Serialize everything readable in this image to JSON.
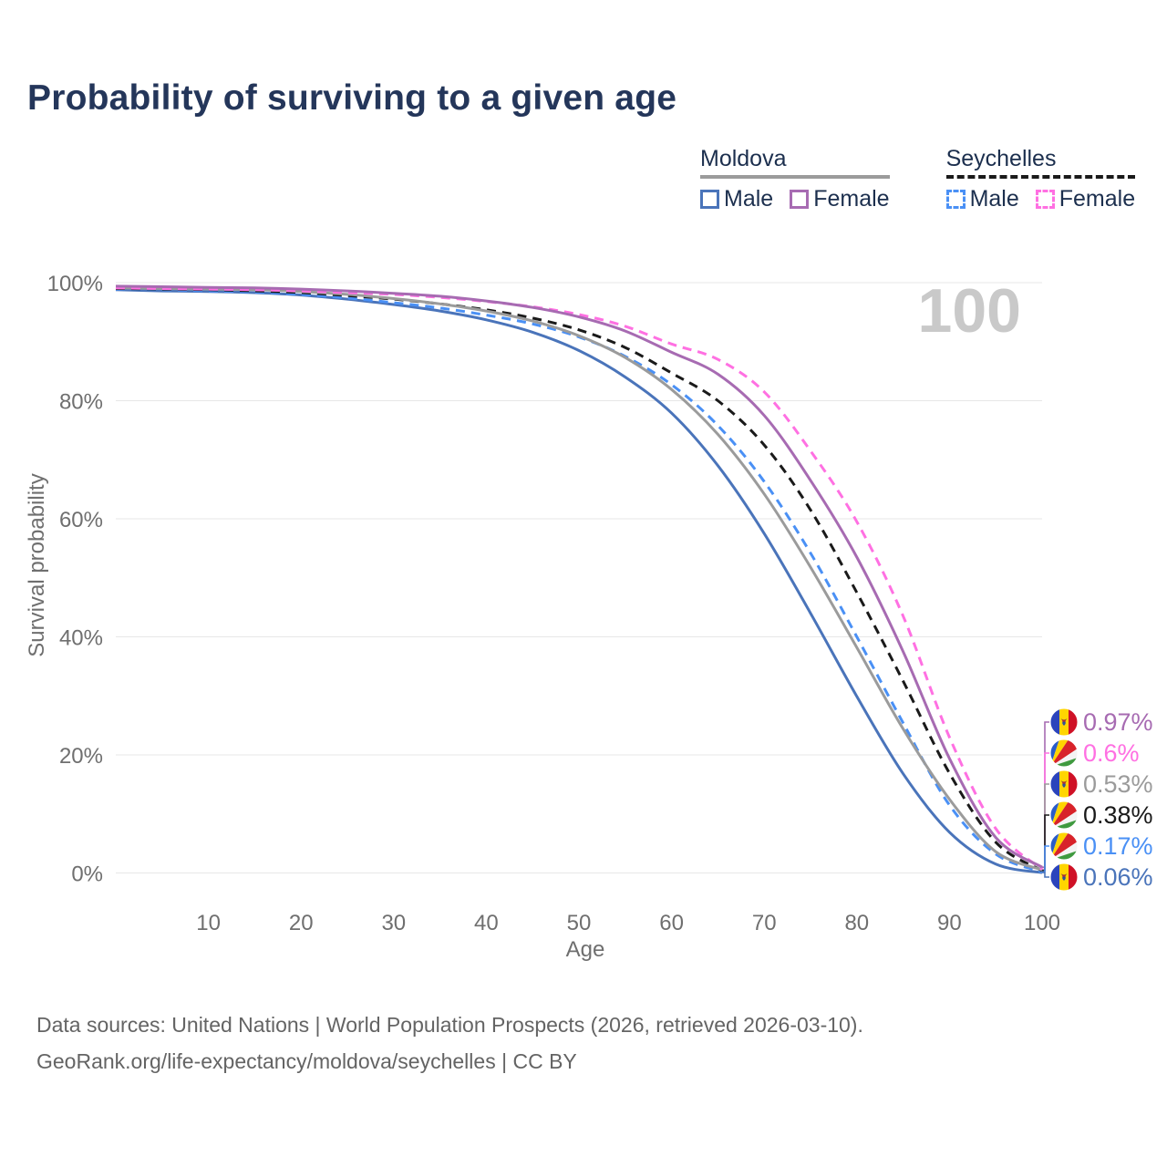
{
  "title": "Probability of surviving to a given age",
  "watermark": "100",
  "legend": {
    "groups": [
      {
        "country": "Moldova",
        "line_style": "solid",
        "underline_color": "#9b9b9b",
        "items": [
          {
            "label": "Male",
            "color": "#4a74ba"
          },
          {
            "label": "Female",
            "color": "#a76bb2"
          }
        ]
      },
      {
        "country": "Seychelles",
        "line_style": "dashed",
        "underline_color": "#1a1a1a",
        "items": [
          {
            "label": "Male",
            "color": "#4a90f5"
          },
          {
            "label": "Female",
            "color": "#ff70e2"
          }
        ]
      }
    ]
  },
  "chart_data": {
    "type": "line",
    "title": "Probability of surviving to a given age",
    "xlabel": "Age",
    "ylabel": "Survival probability",
    "xlim": [
      0,
      100
    ],
    "ylim": [
      0,
      100
    ],
    "grid": "horizontal",
    "x_ticks": [
      10,
      20,
      30,
      40,
      50,
      60,
      70,
      80,
      90,
      100
    ],
    "y_ticks": [
      "0%",
      "20%",
      "40%",
      "60%",
      "80%",
      "100%"
    ],
    "y_tick_values": [
      0,
      20,
      40,
      60,
      80,
      100
    ],
    "x": [
      0,
      5,
      10,
      15,
      20,
      25,
      30,
      35,
      40,
      45,
      50,
      55,
      60,
      65,
      70,
      75,
      80,
      85,
      90,
      95,
      100
    ],
    "series": [
      {
        "name": "Moldova Female",
        "country": "Moldova",
        "sex": "Female",
        "line_style": "solid",
        "color": "#a76bb2",
        "flag_icon": "moldova-flag",
        "end_label": "0.97%",
        "values": [
          99.4,
          99.3,
          99.2,
          99.1,
          98.9,
          98.6,
          98.2,
          97.7,
          96.9,
          95.8,
          94.2,
          91.8,
          88.2,
          84.5,
          77.5,
          66.5,
          53.5,
          37.5,
          19.4,
          6.0,
          0.97
        ]
      },
      {
        "name": "Seychelles Female",
        "country": "Seychelles",
        "sex": "Female",
        "line_style": "dashed",
        "color": "#ff70e2",
        "flag_icon": "seychelles-flag",
        "end_label": "0.6%",
        "values": [
          99.1,
          99.0,
          98.9,
          98.8,
          98.6,
          98.3,
          98.0,
          97.5,
          96.8,
          95.9,
          94.6,
          92.6,
          89.6,
          87.0,
          81.5,
          71.5,
          59.5,
          43.5,
          23.0,
          7.5,
          0.6
        ]
      },
      {
        "name": "Moldova All",
        "country": "Moldova",
        "sex": "All",
        "line_style": "solid",
        "color": "#9b9b9b",
        "flag_icon": "moldova-flag",
        "end_label": "0.53%",
        "values": [
          99.1,
          99.0,
          98.9,
          98.8,
          98.5,
          98.0,
          97.3,
          96.4,
          95.2,
          93.5,
          91.0,
          87.3,
          81.9,
          74.3,
          64.2,
          51.8,
          38.2,
          24.4,
          12.5,
          3.6,
          0.53
        ]
      },
      {
        "name": "Seychelles All",
        "country": "Seychelles",
        "sex": "All",
        "line_style": "dashed",
        "color": "#1a1a1a",
        "flag_icon": "seychelles-flag",
        "end_label": "0.38%",
        "values": [
          99.0,
          98.9,
          98.8,
          98.6,
          98.3,
          97.8,
          97.2,
          96.4,
          95.4,
          94.0,
          92.0,
          89.0,
          84.7,
          80.0,
          72.5,
          61.5,
          47.5,
          32.5,
          16.9,
          5.2,
          0.38
        ]
      },
      {
        "name": "Seychelles Male",
        "country": "Seychelles",
        "sex": "Male",
        "line_style": "dashed",
        "color": "#4a90f5",
        "flag_icon": "seychelles-flag",
        "end_label": "0.17%",
        "values": [
          98.9,
          98.8,
          98.6,
          98.4,
          98.0,
          97.4,
          96.6,
          95.7,
          94.5,
          93.0,
          90.8,
          87.5,
          82.7,
          75.8,
          66.3,
          54.2,
          40.0,
          25.4,
          11.5,
          3.2,
          0.17
        ]
      },
      {
        "name": "Moldova Male",
        "country": "Moldova",
        "sex": "Male",
        "line_style": "solid",
        "color": "#4a74ba",
        "flag_icon": "moldova-flag",
        "end_label": "0.06%",
        "values": [
          98.8,
          98.6,
          98.5,
          98.3,
          97.9,
          97.2,
          96.3,
          95.2,
          93.7,
          91.6,
          88.5,
          84.0,
          77.9,
          69.0,
          57.5,
          44.0,
          29.9,
          16.8,
          6.9,
          1.5,
          0.06
        ]
      }
    ]
  },
  "footer": {
    "line1": "Data sources: United Nations | World Population Prospects (2026, retrieved 2026-03-10).",
    "line2": "GeoRank.org/life-expectancy/moldova/seychelles | CC BY"
  }
}
